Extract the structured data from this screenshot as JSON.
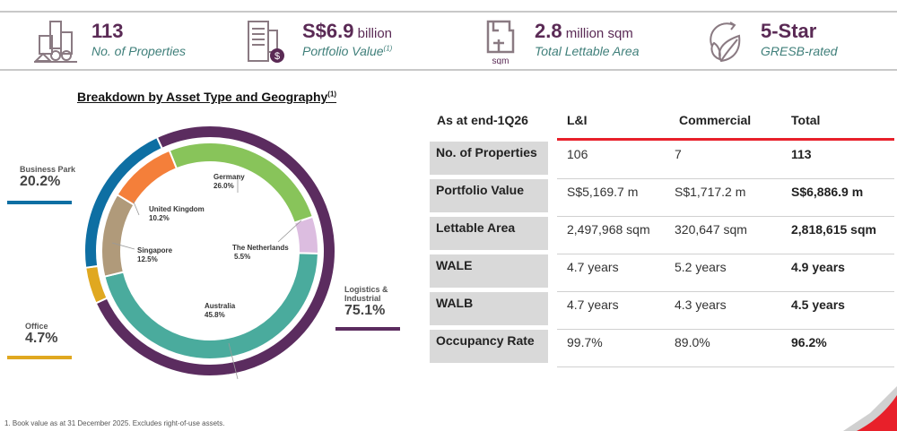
{
  "kpis": [
    {
      "icon": "buildings-icon",
      "value": "113",
      "unit": "",
      "caption": "No. of Properties",
      "sup": ""
    },
    {
      "icon": "building-dollar-icon",
      "value": "S$6.9",
      "unit": " billion",
      "caption": "Portfolio Value",
      "sup": "(1)"
    },
    {
      "icon": "floorplan-sqm-icon",
      "value": "2.8",
      "unit": " million sqm",
      "caption": "Total Lettable Area",
      "sup": "",
      "icon_text": "sqm"
    },
    {
      "icon": "leaf-recycle-icon",
      "value": "5-Star",
      "unit": "",
      "caption": "GRESB-rated",
      "sup": ""
    }
  ],
  "chart_data": {
    "type": "pie",
    "variant": "double-donut",
    "title": "Breakdown by Asset Type and Geography",
    "title_sup": "(1)",
    "outer_ring": {
      "name": "Asset Type",
      "slices": [
        {
          "label": "Logistics & Industrial",
          "value": 75.1,
          "display": "75.1%",
          "color": "#5b2c5f"
        },
        {
          "label": "Office",
          "value": 4.7,
          "display": "4.7%",
          "color": "#e0a820"
        },
        {
          "label": "Business Park",
          "value": 20.2,
          "display": "20.2%",
          "color": "#0e6fa3"
        }
      ]
    },
    "inner_ring": {
      "name": "Geography",
      "slices": [
        {
          "label": "Germany",
          "value": 26.0,
          "display": "26.0%",
          "color": "#88c45a"
        },
        {
          "label": "The Netherlands",
          "value": 5.5,
          "display": "5.5%",
          "color": "#dcbde0"
        },
        {
          "label": "Australia",
          "value": 45.8,
          "display": "45.8%",
          "color": "#4aab9d"
        },
        {
          "label": "Singapore",
          "value": 12.5,
          "display": "12.5%",
          "color": "#b09a7a"
        },
        {
          "label": "United Kingdom",
          "value": 10.2,
          "display": "10.2%",
          "color": "#f47f3a"
        }
      ]
    }
  },
  "table": {
    "corner": "As at end-1Q26",
    "columns": [
      "L&I",
      "Commercial",
      "Total"
    ],
    "rows": [
      {
        "label": "No. of Properties",
        "values": [
          "106",
          "7",
          "113"
        ]
      },
      {
        "label": "Portfolio Value",
        "values": [
          "S$5,169.7 m",
          "S$1,717.2 m",
          "S$6,886.9 m"
        ]
      },
      {
        "label": "Lettable Area",
        "values": [
          "2,497,968 sqm",
          "320,647 sqm",
          "2,818,615 sqm"
        ]
      },
      {
        "label": "WALE",
        "values": [
          "4.7 years",
          "5.2 years",
          "4.9 years"
        ]
      },
      {
        "label": "WALB",
        "values": [
          "4.7 years",
          "4.3 years",
          "4.5 years"
        ]
      },
      {
        "label": "Occupancy Rate",
        "values": [
          "99.7%",
          "89.0%",
          "96.2%"
        ]
      }
    ],
    "accent_color": "#e8202a"
  },
  "footnote": "1. Book value as at 31 December 2025. Excludes right-of-use assets."
}
